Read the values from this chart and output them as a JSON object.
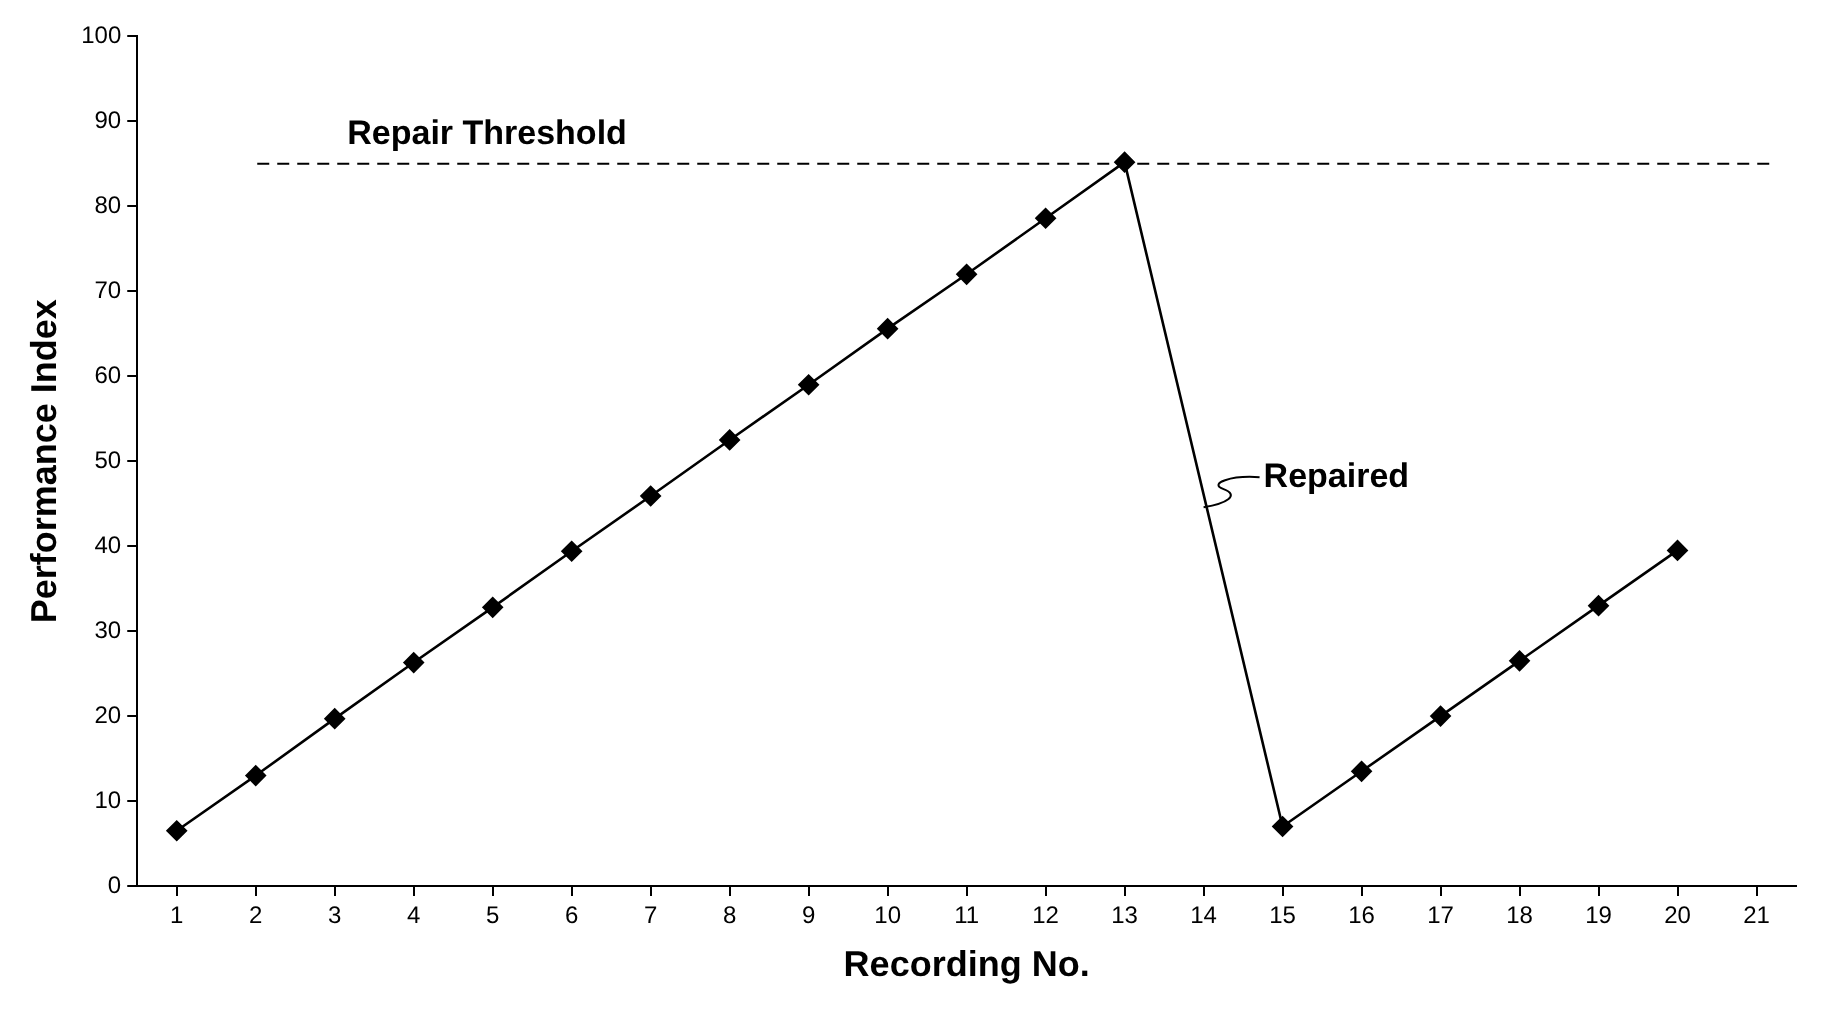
{
  "chart_data": {
    "type": "line",
    "xlabel": "Recording No.",
    "ylabel": "Performance Index",
    "x": [
      1,
      2,
      3,
      4,
      5,
      6,
      7,
      8,
      9,
      10,
      11,
      12,
      13,
      15,
      16,
      17,
      18,
      19,
      20
    ],
    "series": [
      {
        "color": "#000000",
        "values": [
          6.5,
          13,
          19.7,
          26.3,
          32.8,
          39.4,
          45.9,
          52.5,
          59,
          65.6,
          72,
          78.6,
          85.2,
          7,
          13.5,
          20,
          26.5,
          33,
          39.5
        ]
      }
    ],
    "xlim": [
      0.5,
      21.5
    ],
    "xticks": [
      1,
      2,
      3,
      4,
      5,
      6,
      7,
      8,
      9,
      10,
      11,
      12,
      13,
      14,
      15,
      16,
      17,
      18,
      19,
      20,
      21
    ],
    "ylim": [
      0,
      100
    ],
    "yticks": [
      0,
      10,
      20,
      30,
      40,
      50,
      60,
      70,
      80,
      90,
      100
    ],
    "ref_lines": [
      {
        "axis": "y",
        "value": 85,
        "label": "Repair Threshold",
        "line_style": "dashed",
        "color": "#000000"
      }
    ],
    "annotations": [
      {
        "text": "Repaired",
        "x": 14,
        "y": 46
      }
    ],
    "grid": false,
    "legend": false,
    "marker": "diamond",
    "line_style": "solid"
  }
}
